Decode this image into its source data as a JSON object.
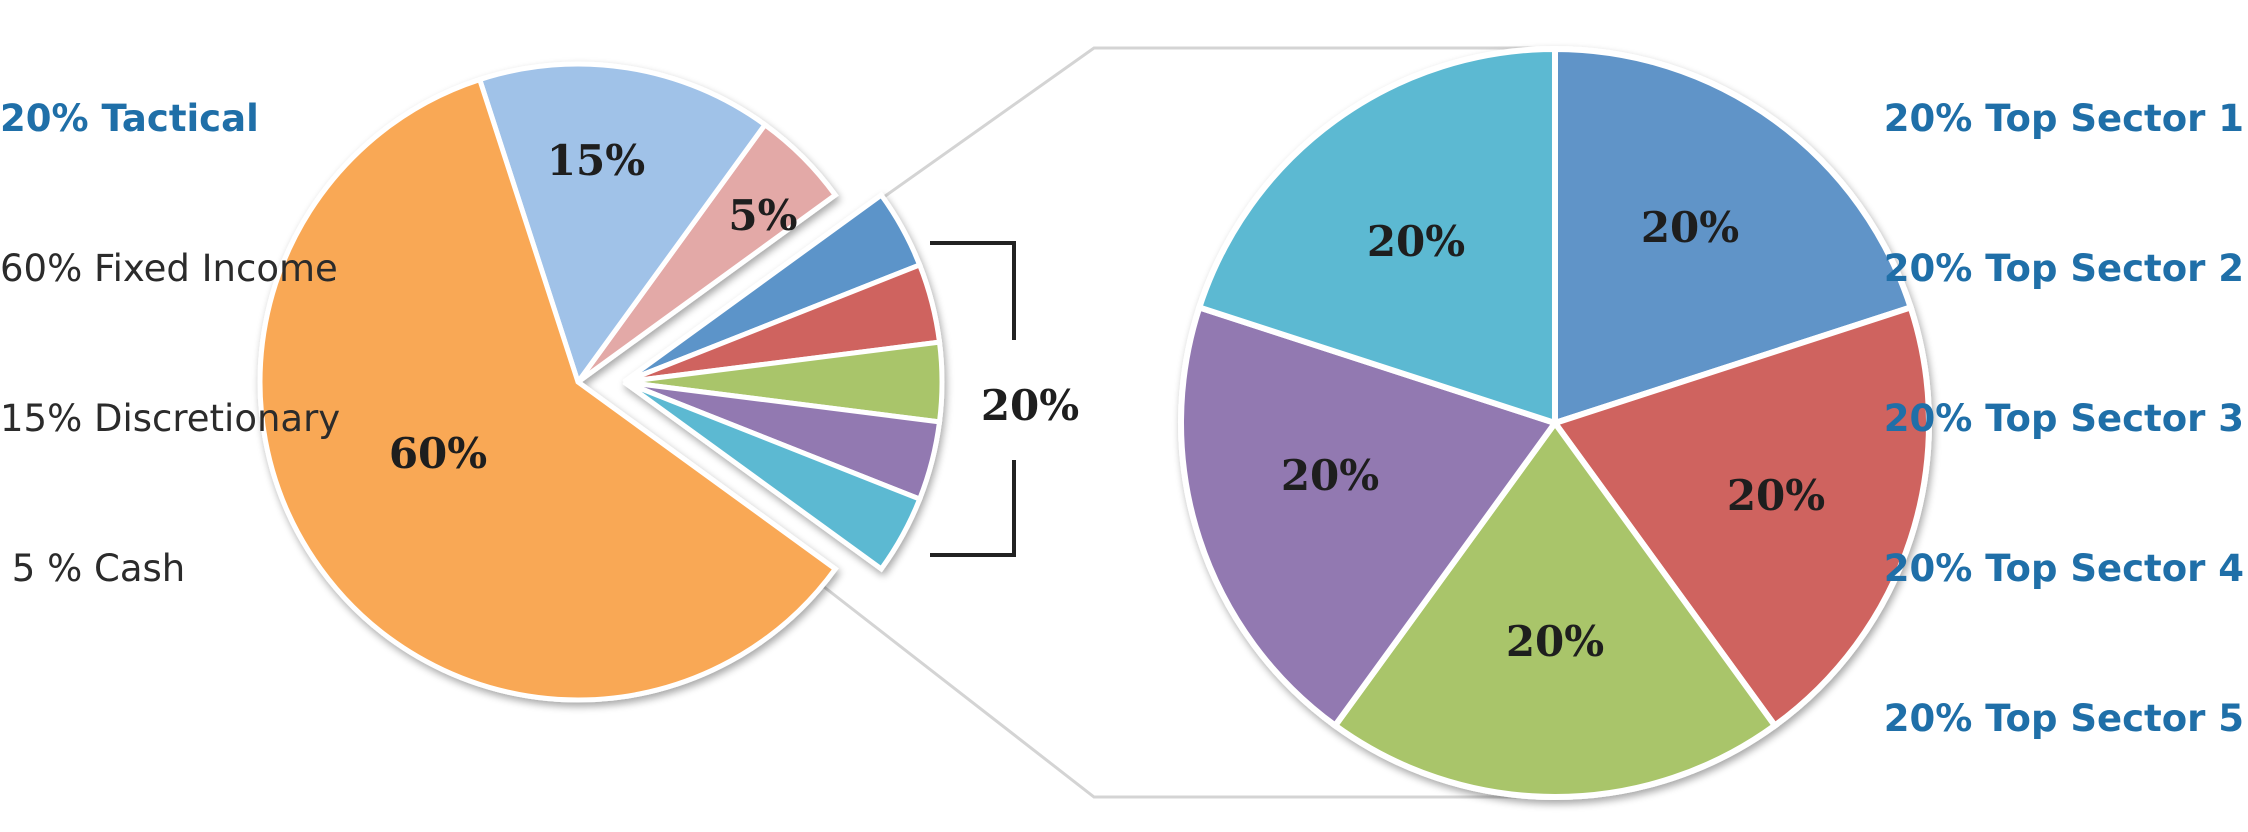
{
  "legend_left": {
    "title": "20% Tactical",
    "items": [
      "60% Fixed Income",
      "15% Discretionary",
      " 5 % Cash"
    ]
  },
  "legend_right": {
    "items": [
      "20% Top Sector 1",
      "20% Top Sector 2",
      "20% Top Sector 3",
      "20% Top Sector 4",
      "20% Top Sector 5"
    ]
  },
  "bracket_label": "20%",
  "chart_data": [
    {
      "type": "pie",
      "title": "",
      "slices": [
        {
          "name": "Fixed Income",
          "value": 60,
          "label": "60%",
          "color": "#F9A855"
        },
        {
          "name": "Discretionary",
          "value": 15,
          "label": "15%",
          "color": "#A0C2E8"
        },
        {
          "name": "Cash",
          "value": 5,
          "label": "5%",
          "color": "#E3A9A7"
        },
        {
          "name": "Tactical",
          "value": 20,
          "label": "20%",
          "exploded": true,
          "sub_colors": [
            "#5B94C9",
            "#CF645E",
            "#A9C56A",
            "#9279B1",
            "#5CB9D2"
          ]
        }
      ]
    },
    {
      "type": "pie",
      "title": "",
      "slices": [
        {
          "name": "Top Sector 1",
          "value": 20,
          "label": "20%",
          "color": "#6194C8"
        },
        {
          "name": "Top Sector 2",
          "value": 20,
          "label": "20%",
          "color": "#CF645E"
        },
        {
          "name": "Top Sector 3",
          "value": 20,
          "label": "20%",
          "color": "#A9C56A"
        },
        {
          "name": "Top Sector 4",
          "value": 20,
          "label": "20%",
          "color": "#9279B1"
        },
        {
          "name": "Top Sector 5",
          "value": 20,
          "label": "20%",
          "color": "#5CB9D2"
        }
      ]
    }
  ]
}
